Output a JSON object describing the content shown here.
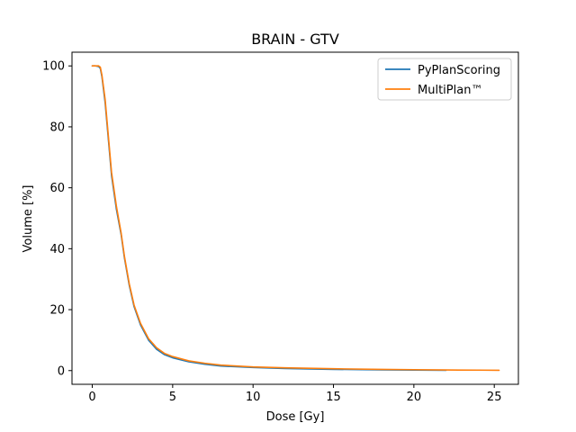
{
  "chart_data": {
    "type": "line",
    "title": "BRAIN - GTV",
    "xlabel": "Dose [Gy]",
    "ylabel": "Volume [%]",
    "xlim": [
      -1.26,
      26.5
    ],
    "ylim": [
      -4.5,
      104.5
    ],
    "xticks": [
      0,
      5,
      10,
      15,
      20,
      25
    ],
    "yticks": [
      0,
      20,
      40,
      60,
      80,
      100
    ],
    "xtick_labels": [
      "0",
      "5",
      "10",
      "15",
      "20",
      "25"
    ],
    "ytick_labels": [
      "0",
      "20",
      "40",
      "60",
      "80",
      "100"
    ],
    "grid": false,
    "legend_position": "top-right",
    "series": [
      {
        "name": "PyPlanScoring",
        "color": "#1f77b4",
        "x": [
          0,
          0.2,
          0.4,
          0.5,
          0.6,
          0.8,
          1.0,
          1.2,
          1.5,
          1.8,
          2.0,
          2.3,
          2.6,
          3.0,
          3.5,
          4.0,
          4.5,
          5.0,
          6.0,
          7.0,
          8.0,
          10.0,
          12.0,
          15.0,
          18.0,
          20.0,
          22.0
        ],
        "y": [
          100,
          100,
          99.8,
          99.2,
          96.5,
          88,
          76,
          64,
          53,
          44.5,
          37,
          28,
          21,
          15,
          10,
          7,
          5.2,
          4.2,
          2.9,
          2.1,
          1.5,
          1.0,
          0.7,
          0.4,
          0.25,
          0.15,
          0.1
        ]
      },
      {
        "name": "MultiPlan™",
        "color": "#ff7f0e",
        "x": [
          0,
          0.2,
          0.4,
          0.5,
          0.6,
          0.8,
          1.0,
          1.2,
          1.5,
          1.8,
          2.0,
          2.3,
          2.6,
          3.0,
          3.5,
          4.0,
          4.5,
          5.0,
          6.0,
          7.0,
          8.0,
          10.0,
          12.0,
          15.0,
          18.0,
          20.0,
          22.0,
          24.0,
          25.3
        ],
        "y": [
          100,
          100,
          100,
          99.6,
          97,
          89,
          77,
          65,
          54,
          45,
          37.5,
          28.5,
          21.5,
          15.5,
          10.5,
          7.5,
          5.6,
          4.6,
          3.2,
          2.4,
          1.8,
          1.2,
          0.9,
          0.6,
          0.4,
          0.3,
          0.2,
          0.15,
          0.1
        ]
      }
    ]
  }
}
